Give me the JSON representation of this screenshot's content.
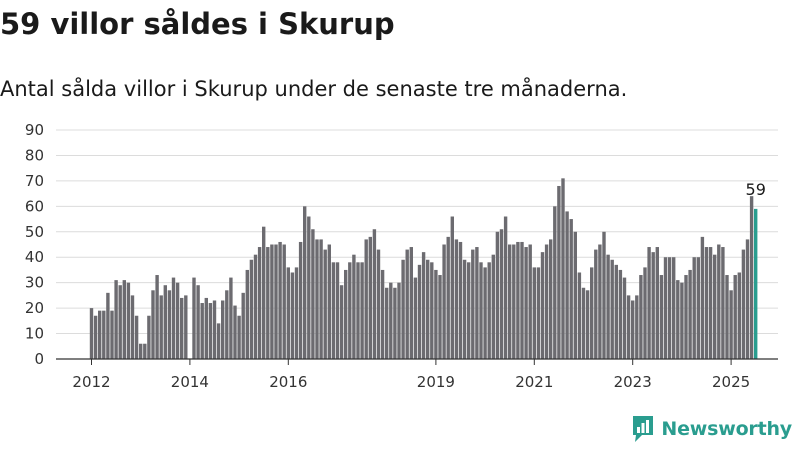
{
  "title": "59 villor såldes i Skurup",
  "subtitle": "Antal sålda villor i Skurup under de senaste tre månaderna.",
  "brand": {
    "name": "Newsworthy",
    "icon": "newsworthy-logo-icon",
    "color": "#2a9d8f"
  },
  "chart_data": {
    "type": "bar",
    "title": "59 villor såldes i Skurup",
    "subtitle": "Antal sålda villor i Skurup under de senaste tre månaderna.",
    "xlabel": "",
    "ylabel": "",
    "ylim": [
      0,
      90
    ],
    "yticks": [
      "0",
      "10",
      "20",
      "30",
      "40",
      "50",
      "60",
      "70",
      "80",
      "90"
    ],
    "xticks": [
      "2012",
      "2014",
      "2016",
      "2019",
      "2021",
      "2023",
      "2025"
    ],
    "grid": true,
    "legend": "none",
    "bar_color": "#6c6b70",
    "highlight_color": "#2a9d8f",
    "start": "2012-01",
    "values": [
      20,
      17,
      19,
      19,
      26,
      19,
      31,
      29,
      31,
      30,
      25,
      17,
      6,
      6,
      17,
      27,
      33,
      25,
      29,
      27,
      32,
      30,
      24,
      25,
      0,
      32,
      29,
      22,
      24,
      22,
      23,
      14,
      23,
      27,
      32,
      21,
      17,
      26,
      35,
      39,
      41,
      44,
      52,
      44,
      45,
      45,
      46,
      45,
      36,
      34,
      36,
      46,
      60,
      56,
      51,
      47,
      47,
      43,
      45,
      38,
      38,
      29,
      35,
      38,
      41,
      38,
      38,
      47,
      48,
      51,
      43,
      35,
      28,
      30,
      28,
      30,
      39,
      43,
      44,
      32,
      37,
      42,
      39,
      38,
      35,
      33,
      45,
      48,
      56,
      47,
      46,
      39,
      38,
      43,
      44,
      38,
      36,
      38,
      41,
      50,
      51,
      56,
      45,
      45,
      46,
      46,
      44,
      45,
      36,
      36,
      42,
      45,
      47,
      60,
      68,
      71,
      58,
      55,
      50,
      34,
      28,
      27,
      36,
      43,
      45,
      50,
      41,
      39,
      37,
      35,
      32,
      25,
      23,
      25,
      33,
      36,
      44,
      42,
      44,
      33,
      40,
      40,
      40,
      31,
      30,
      33,
      35,
      40,
      40,
      48,
      44,
      44,
      41,
      45,
      44,
      33,
      27,
      33,
      34,
      43,
      47,
      64,
      59
    ],
    "highlight_last": true,
    "value_label": "59"
  }
}
